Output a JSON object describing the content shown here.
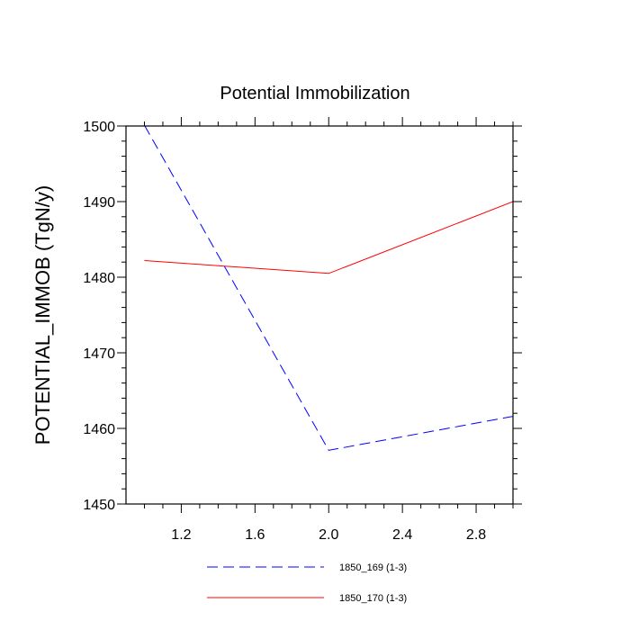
{
  "chart_data": {
    "type": "line",
    "title": "Potential Immobilization",
    "xlabel": "",
    "ylabel": "POTENTIAL_IMMOB  (TgN/y)",
    "xlim": [
      0.9,
      3.0
    ],
    "ylim": [
      1450,
      1500
    ],
    "x_ticks": [
      1.2,
      1.6,
      2.0,
      2.4,
      2.8
    ],
    "x_tick_labels": [
      "1.2",
      "1.6",
      "2.0",
      "2.4",
      "2.8"
    ],
    "y_ticks": [
      1450,
      1460,
      1470,
      1480,
      1490,
      1500
    ],
    "y_tick_labels": [
      "1450",
      "1460",
      "1470",
      "1480",
      "1490",
      "1500"
    ],
    "x": [
      1,
      2,
      3
    ],
    "series": [
      {
        "name": "1850_169 (1-3)",
        "values": [
          1500.1,
          1457.1,
          1461.6
        ],
        "color": "#0000ff",
        "dashed": true
      },
      {
        "name": "1850_170 (1-3)",
        "values": [
          1482.2,
          1480.5,
          1490.0
        ],
        "color": "#ff0000",
        "dashed": false
      }
    ],
    "legend_position": "bottom-center",
    "grid": false
  }
}
